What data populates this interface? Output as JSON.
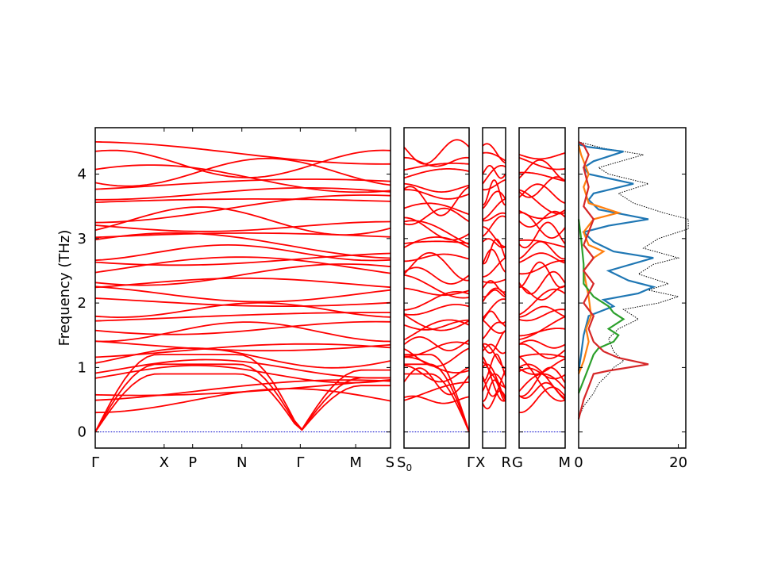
{
  "chart_data": {
    "type": "line",
    "ylabel": "Frequency (THz)",
    "ylim": [
      -0.25,
      4.72
    ],
    "yticks": [
      0,
      1,
      2,
      3,
      4
    ],
    "band_color": "#ff0000",
    "zero_line_color": "#0000cc",
    "band_panels": [
      {
        "labels": [
          "Γ",
          "X",
          "P",
          "N",
          "Γ",
          "M",
          "S"
        ],
        "label_pos": [
          0,
          0.336,
          0.475,
          0.715,
          1.0,
          1.27,
          1.44
        ],
        "xlim": [
          0,
          1.44
        ]
      },
      {
        "labels": [
          "S0",
          "Γ"
        ],
        "label_pos": [
          0,
          1
        ],
        "xlim": [
          0,
          1
        ]
      },
      {
        "labels": [
          "X",
          "R"
        ],
        "label_pos": [
          0,
          1
        ],
        "xlim": [
          0,
          1
        ]
      },
      {
        "labels": [
          "G",
          "M"
        ],
        "label_pos": [
          0,
          1
        ],
        "xlim": [
          0,
          1
        ]
      }
    ],
    "dos": {
      "xlim": [
        0,
        21.5
      ],
      "xticks": [
        0,
        20
      ],
      "series": [
        {
          "color": "#000000",
          "style": "dotted",
          "points": [
            [
              0,
              0.22
            ],
            [
              1,
              0.4
            ],
            [
              3,
              0.6
            ],
            [
              4,
              0.75
            ],
            [
              6,
              0.9
            ],
            [
              7,
              1.0
            ],
            [
              9,
              1.1
            ],
            [
              7,
              1.25
            ],
            [
              6,
              1.45
            ],
            [
              8,
              1.6
            ],
            [
              12,
              1.75
            ],
            [
              9,
              1.9
            ],
            [
              16,
              2.0
            ],
            [
              20,
              2.1
            ],
            [
              14,
              2.2
            ],
            [
              18,
              2.3
            ],
            [
              12,
              2.45
            ],
            [
              15,
              2.6
            ],
            [
              20,
              2.7
            ],
            [
              13,
              2.85
            ],
            [
              16,
              3.0
            ],
            [
              22,
              3.15
            ],
            [
              22,
              3.3
            ],
            [
              17,
              3.4
            ],
            [
              11,
              3.55
            ],
            [
              8,
              3.7
            ],
            [
              14,
              3.85
            ],
            [
              6,
              4.0
            ],
            [
              4,
              4.1
            ],
            [
              13,
              4.3
            ],
            [
              5,
              4.4
            ],
            [
              1,
              4.48
            ],
            [
              0,
              4.5
            ]
          ]
        },
        {
          "color": "#1f77b4",
          "style": "solid",
          "points": [
            [
              0,
              0.95
            ],
            [
              0.5,
              1.2
            ],
            [
              1,
              1.5
            ],
            [
              2,
              1.8
            ],
            [
              7,
              1.95
            ],
            [
              5,
              2.05
            ],
            [
              12,
              2.15
            ],
            [
              15,
              2.25
            ],
            [
              10,
              2.35
            ],
            [
              6,
              2.5
            ],
            [
              15,
              2.7
            ],
            [
              7,
              2.8
            ],
            [
              3,
              2.95
            ],
            [
              1,
              3.1
            ],
            [
              6,
              3.2
            ],
            [
              14,
              3.3
            ],
            [
              4,
              3.45
            ],
            [
              2,
              3.6
            ],
            [
              3,
              3.7
            ],
            [
              11,
              3.85
            ],
            [
              2,
              4.0
            ],
            [
              1,
              4.1
            ],
            [
              3,
              4.2
            ],
            [
              9,
              4.35
            ],
            [
              2,
              4.42
            ],
            [
              0,
              4.46
            ]
          ]
        },
        {
          "color": "#ff7f0e",
          "style": "solid",
          "points": [
            [
              0,
              0.9
            ],
            [
              1,
              1.1
            ],
            [
              2,
              1.4
            ],
            [
              1.5,
              1.6
            ],
            [
              2.5,
              1.8
            ],
            [
              2,
              2.1
            ],
            [
              1,
              2.5
            ],
            [
              3,
              2.7
            ],
            [
              5,
              2.8
            ],
            [
              2,
              2.9
            ],
            [
              1,
              3.1
            ],
            [
              3,
              3.3
            ],
            [
              8,
              3.4
            ],
            [
              2,
              3.55
            ],
            [
              1,
              3.8
            ],
            [
              2,
              4.0
            ],
            [
              0.5,
              4.3
            ],
            [
              0,
              4.45
            ]
          ]
        },
        {
          "color": "#2ca02c",
          "style": "solid",
          "points": [
            [
              0,
              0.6
            ],
            [
              1,
              0.8
            ],
            [
              2,
              1.0
            ],
            [
              3,
              1.2
            ],
            [
              4,
              1.3
            ],
            [
              7,
              1.4
            ],
            [
              8,
              1.5
            ],
            [
              6,
              1.6
            ],
            [
              9,
              1.75
            ],
            [
              7,
              1.85
            ],
            [
              6,
              1.95
            ],
            [
              3,
              2.1
            ],
            [
              1,
              2.3
            ],
            [
              1,
              2.6
            ],
            [
              0.5,
              3.0
            ],
            [
              0,
              3.3
            ]
          ]
        },
        {
          "color": "#d62728",
          "style": "solid",
          "points": [
            [
              0,
              0.2
            ],
            [
              1,
              0.5
            ],
            [
              2,
              0.7
            ],
            [
              3,
              0.9
            ],
            [
              6,
              0.95
            ],
            [
              14,
              1.05
            ],
            [
              8,
              1.15
            ],
            [
              5,
              1.25
            ],
            [
              3,
              1.4
            ],
            [
              2,
              1.6
            ],
            [
              3,
              1.8
            ],
            [
              1,
              2.0
            ],
            [
              2,
              2.15
            ],
            [
              3,
              2.3
            ],
            [
              1,
              2.5
            ],
            [
              3,
              2.7
            ],
            [
              1,
              2.9
            ],
            [
              2,
              3.1
            ],
            [
              3,
              3.3
            ],
            [
              1,
              3.5
            ],
            [
              2,
              3.8
            ],
            [
              1,
              4.1
            ],
            [
              2,
              4.3
            ],
            [
              1,
              4.45
            ],
            [
              0,
              4.5
            ]
          ]
        }
      ]
    }
  }
}
